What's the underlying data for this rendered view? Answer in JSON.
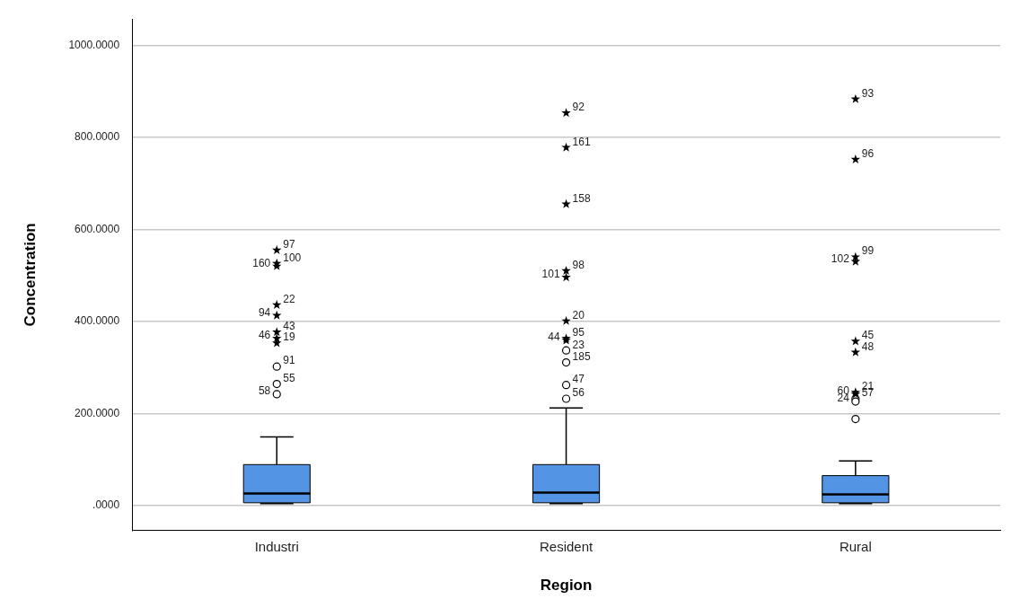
{
  "chart_data": {
    "type": "box",
    "xlabel": "Region",
    "ylabel": "Concentration",
    "categories": [
      "Industri",
      "Resident",
      "Rural"
    ],
    "ylim": [
      -54,
      1057
    ],
    "yticks": [
      {
        "value": 0,
        "label": ".0000"
      },
      {
        "value": 200,
        "label": "200.0000"
      },
      {
        "value": 400,
        "label": "400.0000"
      },
      {
        "value": 600,
        "label": "600.0000"
      },
      {
        "value": 800,
        "label": "800.0000"
      },
      {
        "value": 1000,
        "label": "1000.0000"
      }
    ],
    "grid": "y",
    "legend": false,
    "series": [
      {
        "type": "box",
        "color": "#5394e5",
        "boxes": [
          {
            "low": 4,
            "q1": 6,
            "median": 26,
            "q3": 89,
            "high": 149
          },
          {
            "low": 4,
            "q1": 6,
            "median": 28,
            "q3": 89,
            "high": 212
          },
          {
            "low": 4,
            "q1": 6,
            "median": 24,
            "q3": 65,
            "high": 97
          }
        ]
      },
      {
        "type": "scatter",
        "marker": "circle",
        "color": "#000000",
        "x": [
          "Industri",
          "Industri",
          "Industri",
          "Resident",
          "Resident",
          "Resident",
          "Resident",
          "Rural",
          "Rural",
          "Rural"
        ],
        "values": [
          302,
          264,
          242,
          337,
          311,
          262,
          232,
          232,
          226,
          188
        ]
      },
      {
        "type": "scatter",
        "marker": "star",
        "color": "#000000",
        "x": [
          "Industri",
          "Industri",
          "Industri",
          "Industri",
          "Industri",
          "Industri",
          "Industri",
          "Industri",
          "Resident",
          "Resident",
          "Resident",
          "Resident",
          "Resident",
          "Resident",
          "Resident",
          "Resident",
          "Rural",
          "Rural",
          "Rural",
          "Rural",
          "Rural",
          "Rural",
          "Rural",
          "Rural"
        ],
        "values": [
          555,
          526,
          520,
          436,
          413,
          377,
          363,
          353,
          853,
          778,
          655,
          510,
          496,
          401,
          363,
          359,
          883,
          752,
          540,
          530,
          357,
          333,
          246,
          242
        ]
      }
    ],
    "annotations": [
      {
        "text": "97",
        "x": "Industri",
        "y": 555
      },
      {
        "text": "100",
        "x": "Industri",
        "y": 526
      },
      {
        "text": "160",
        "x": "Industri",
        "y": 520
      },
      {
        "text": "22",
        "x": "Industri",
        "y": 436
      },
      {
        "text": "94",
        "x": "Industri",
        "y": 413
      },
      {
        "text": "43",
        "x": "Industri",
        "y": 377
      },
      {
        "text": "46",
        "x": "Industri",
        "y": 363
      },
      {
        "text": "19",
        "x": "Industri",
        "y": 353
      },
      {
        "text": "91",
        "x": "Industri",
        "y": 302
      },
      {
        "text": "55",
        "x": "Industri",
        "y": 264
      },
      {
        "text": "58",
        "x": "Industri",
        "y": 242
      },
      {
        "text": "92",
        "x": "Resident",
        "y": 853
      },
      {
        "text": "161",
        "x": "Resident",
        "y": 778
      },
      {
        "text": "158",
        "x": "Resident",
        "y": 655
      },
      {
        "text": "98",
        "x": "Resident",
        "y": 510
      },
      {
        "text": "101",
        "x": "Resident",
        "y": 496
      },
      {
        "text": "20",
        "x": "Resident",
        "y": 401
      },
      {
        "text": "95",
        "x": "Resident",
        "y": 363
      },
      {
        "text": "44",
        "x": "Resident",
        "y": 359
      },
      {
        "text": "23",
        "x": "Resident",
        "y": 337
      },
      {
        "text": "185",
        "x": "Resident",
        "y": 311
      },
      {
        "text": "47",
        "x": "Resident",
        "y": 262
      },
      {
        "text": "56",
        "x": "Resident",
        "y": 232
      },
      {
        "text": "93",
        "x": "Rural",
        "y": 883
      },
      {
        "text": "96",
        "x": "Rural",
        "y": 752
      },
      {
        "text": "99",
        "x": "Rural",
        "y": 540
      },
      {
        "text": "102",
        "x": "Rural",
        "y": 530
      },
      {
        "text": "45",
        "x": "Rural",
        "y": 357
      },
      {
        "text": "48",
        "x": "Rural",
        "y": 333
      },
      {
        "text": "21",
        "x": "Rural",
        "y": 246
      },
      {
        "text": "60",
        "x": "Rural",
        "y": 242
      },
      {
        "text": "57",
        "x": "Rural",
        "y": 232
      },
      {
        "text": "24",
        "x": "Rural",
        "y": 226
      }
    ]
  }
}
